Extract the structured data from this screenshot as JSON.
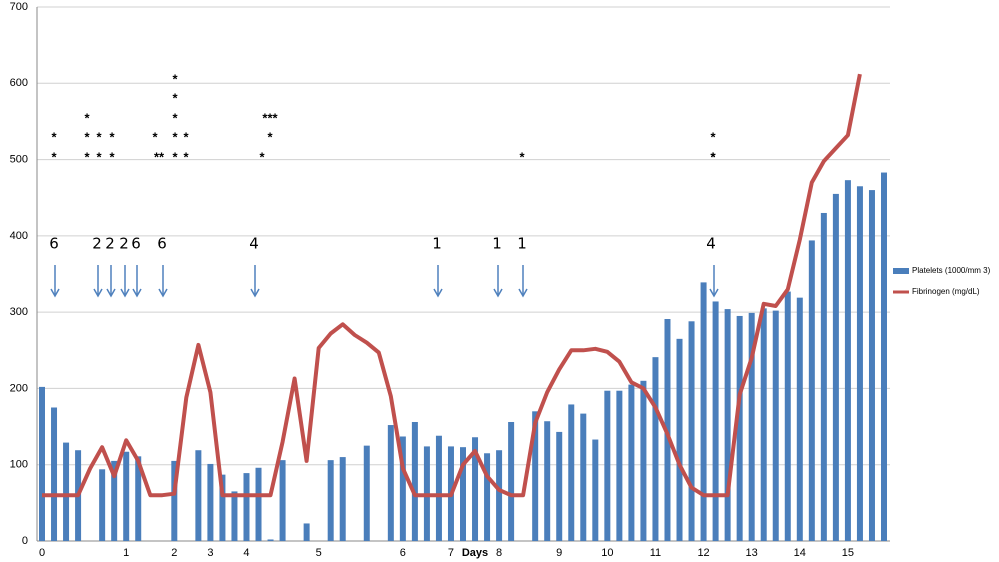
{
  "chart_data": {
    "type": "bar_line",
    "x_label": "Days",
    "categories": [
      "0",
      null,
      null,
      null,
      null,
      null,
      null,
      "1",
      null,
      null,
      null,
      "2",
      null,
      null,
      "3",
      null,
      null,
      "4",
      null,
      null,
      null,
      null,
      null,
      "5",
      null,
      null,
      null,
      null,
      null,
      null,
      "6",
      null,
      null,
      null,
      "7",
      null,
      null,
      null,
      "8",
      null,
      null,
      null,
      null,
      "9",
      null,
      null,
      null,
      "10",
      null,
      null,
      null,
      "11",
      null,
      null,
      null,
      "12",
      null,
      null,
      null,
      "13",
      null,
      null,
      null,
      "14",
      null,
      null,
      null,
      "15",
      null,
      null,
      null
    ],
    "series": [
      {
        "name": "Platelets (1000/mm 3)",
        "color": "#4a7ebb",
        "kind": "bar",
        "values": [
          202,
          175,
          129,
          119,
          null,
          94,
          105,
          117,
          111,
          null,
          null,
          105,
          null,
          119,
          101,
          87,
          65,
          89,
          96,
          2,
          106,
          null,
          23,
          null,
          106,
          110,
          null,
          125,
          null,
          152,
          137,
          156,
          124,
          138,
          124,
          123,
          136,
          115,
          119,
          156,
          null,
          170,
          157,
          143,
          179,
          167,
          133,
          197,
          197,
          205,
          210,
          241,
          291,
          265,
          288,
          339,
          314,
          304,
          295,
          299,
          305,
          302,
          327,
          319,
          394,
          430,
          455,
          473,
          465,
          460,
          483
        ]
      },
      {
        "name": "Fibrinogen (mg/dL)",
        "color": "#c0504d",
        "kind": "line",
        "values": [
          60,
          60,
          60,
          60,
          95,
          123,
          85,
          132,
          105,
          60,
          60,
          62,
          188,
          257,
          195,
          60,
          60,
          60,
          60,
          60,
          130,
          213,
          105,
          253,
          272,
          284,
          270,
          260,
          247,
          190,
          95,
          60,
          60,
          60,
          60,
          100,
          118,
          85,
          67,
          60,
          60,
          155,
          195,
          225,
          250,
          250,
          252,
          248,
          235,
          208,
          200,
          175,
          140,
          100,
          70,
          60,
          60,
          60,
          192,
          240,
          311,
          308,
          330,
          395,
          470,
          498,
          515,
          532,
          612,
          null,
          null
        ]
      }
    ],
    "ylim": [
      0,
      700
    ],
    "yticks": [
      0,
      100,
      200,
      300,
      400,
      500,
      600,
      700
    ],
    "grid": true,
    "legend": "right",
    "annotations": [
      "6",
      "2",
      "2",
      "2",
      "6",
      "6",
      "4",
      "1",
      "1",
      "1",
      "4"
    ],
    "asterisks": [
      "*",
      "*",
      "*",
      "*",
      "*",
      "*",
      "*",
      "*",
      "*",
      "*",
      "**",
      "*",
      "*",
      "*",
      "*",
      "*",
      "*",
      "*",
      "*",
      "***",
      "*",
      "*",
      "*",
      "*",
      "*"
    ]
  }
}
